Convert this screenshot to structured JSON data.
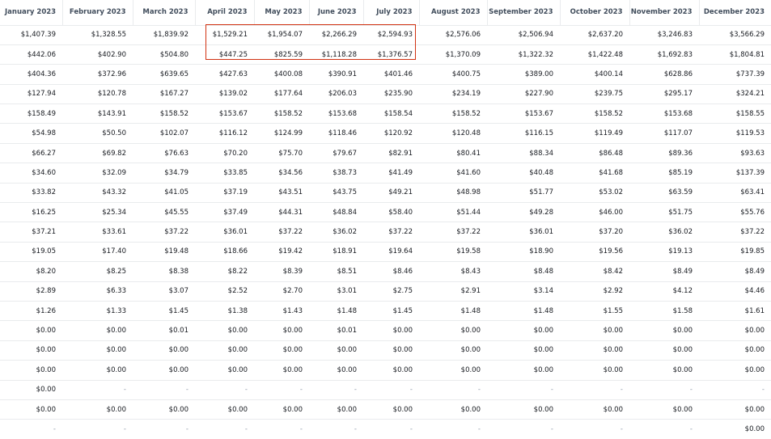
{
  "table": {
    "columns": [
      "January 2023",
      "February 2023",
      "March 2023",
      "April 2023",
      "May 2023",
      "June 2023",
      "July 2023",
      "August 2023",
      "September 2023",
      "October 2023",
      "November 2023",
      "December 2023"
    ],
    "rows": [
      [
        "$1,407.39",
        "$1,328.55",
        "$1,839.92",
        "$1,529.21",
        "$1,954.07",
        "$2,266.29",
        "$2,594.93",
        "$2,576.06",
        "$2,506.94",
        "$2,637.20",
        "$3,246.83",
        "$3,566.29"
      ],
      [
        "$442.06",
        "$402.90",
        "$504.80",
        "$447.25",
        "$825.59",
        "$1,118.28",
        "$1,376.57",
        "$1,370.09",
        "$1,322.32",
        "$1,422.48",
        "$1,692.83",
        "$1,804.81"
      ],
      [
        "$404.36",
        "$372.96",
        "$639.65",
        "$427.63",
        "$400.08",
        "$390.91",
        "$401.46",
        "$400.75",
        "$389.00",
        "$400.14",
        "$628.86",
        "$737.39"
      ],
      [
        "$127.94",
        "$120.78",
        "$167.27",
        "$139.02",
        "$177.64",
        "$206.03",
        "$235.90",
        "$234.19",
        "$227.90",
        "$239.75",
        "$295.17",
        "$324.21"
      ],
      [
        "$158.49",
        "$143.91",
        "$158.52",
        "$153.67",
        "$158.52",
        "$153.68",
        "$158.54",
        "$158.52",
        "$153.67",
        "$158.52",
        "$153.68",
        "$158.55"
      ],
      [
        "$54.98",
        "$50.50",
        "$102.07",
        "$116.12",
        "$124.99",
        "$118.46",
        "$120.92",
        "$120.48",
        "$116.15",
        "$119.49",
        "$117.07",
        "$119.53"
      ],
      [
        "$66.27",
        "$69.82",
        "$76.63",
        "$70.20",
        "$75.70",
        "$79.67",
        "$82.91",
        "$80.41",
        "$88.34",
        "$86.48",
        "$89.36",
        "$93.63"
      ],
      [
        "$34.60",
        "$32.09",
        "$34.79",
        "$33.85",
        "$34.56",
        "$38.73",
        "$41.49",
        "$41.60",
        "$40.48",
        "$41.68",
        "$85.19",
        "$137.39"
      ],
      [
        "$33.82",
        "$43.32",
        "$41.05",
        "$37.19",
        "$43.51",
        "$43.75",
        "$49.21",
        "$48.98",
        "$51.77",
        "$53.02",
        "$63.59",
        "$63.41"
      ],
      [
        "$16.25",
        "$25.34",
        "$45.55",
        "$37.49",
        "$44.31",
        "$48.84",
        "$58.40",
        "$51.44",
        "$49.28",
        "$46.00",
        "$51.75",
        "$55.76"
      ],
      [
        "$37.21",
        "$33.61",
        "$37.22",
        "$36.01",
        "$37.22",
        "$36.02",
        "$37.22",
        "$37.22",
        "$36.01",
        "$37.20",
        "$36.02",
        "$37.22"
      ],
      [
        "$19.05",
        "$17.40",
        "$19.48",
        "$18.66",
        "$19.42",
        "$18.91",
        "$19.64",
        "$19.58",
        "$18.90",
        "$19.56",
        "$19.13",
        "$19.85"
      ],
      [
        "$8.20",
        "$8.25",
        "$8.38",
        "$8.22",
        "$8.39",
        "$8.51",
        "$8.46",
        "$8.43",
        "$8.48",
        "$8.42",
        "$8.49",
        "$8.49"
      ],
      [
        "$2.89",
        "$6.33",
        "$3.07",
        "$2.52",
        "$2.70",
        "$3.01",
        "$2.75",
        "$2.91",
        "$3.14",
        "$2.92",
        "$4.12",
        "$4.46"
      ],
      [
        "$1.26",
        "$1.33",
        "$1.45",
        "$1.38",
        "$1.43",
        "$1.48",
        "$1.45",
        "$1.48",
        "$1.48",
        "$1.55",
        "$1.58",
        "$1.61"
      ],
      [
        "$0.00",
        "$0.00",
        "$0.01",
        "$0.00",
        "$0.00",
        "$0.01",
        "$0.00",
        "$0.00",
        "$0.00",
        "$0.00",
        "$0.00",
        "$0.00"
      ],
      [
        "$0.00",
        "$0.00",
        "$0.00",
        "$0.00",
        "$0.00",
        "$0.00",
        "$0.00",
        "$0.00",
        "$0.00",
        "$0.00",
        "$0.00",
        "$0.00"
      ],
      [
        "$0.00",
        "$0.00",
        "$0.00",
        "$0.00",
        "$0.00",
        "$0.00",
        "$0.00",
        "$0.00",
        "$0.00",
        "$0.00",
        "$0.00",
        "$0.00"
      ],
      [
        "$0.00",
        "-",
        "-",
        "-",
        "-",
        "-",
        "-",
        "-",
        "-",
        "-",
        "-",
        "-"
      ],
      [
        "$0.00",
        "$0.00",
        "$0.00",
        "$0.00",
        "$0.00",
        "$0.00",
        "$0.00",
        "$0.00",
        "$0.00",
        "$0.00",
        "$0.00",
        "$0.00"
      ],
      [
        "-",
        "-",
        "-",
        "-",
        "-",
        "-",
        "-",
        "-",
        "-",
        "-",
        "-",
        "$0.00"
      ]
    ]
  },
  "highlight": {
    "color": "#d13212"
  }
}
